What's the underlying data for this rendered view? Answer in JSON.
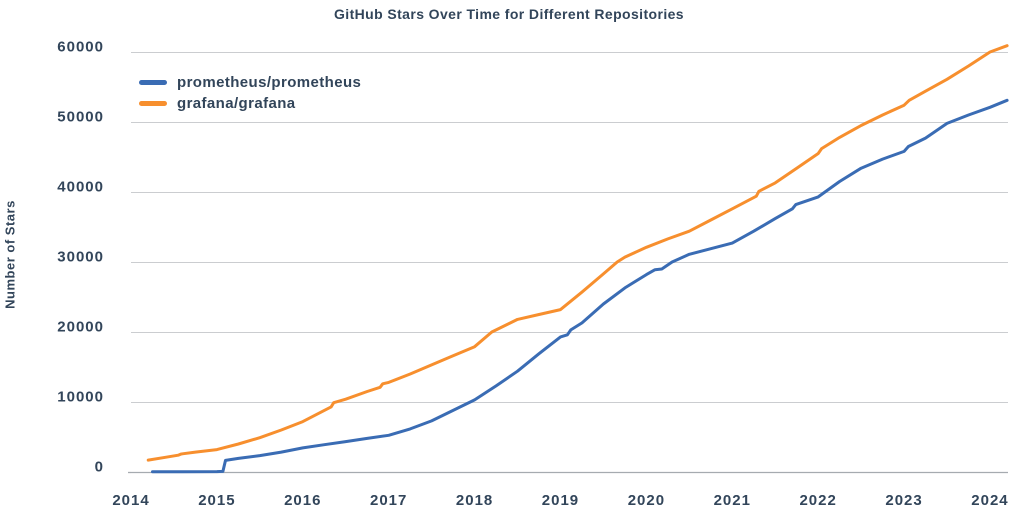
{
  "window": {
    "background_color": "#ffffff"
  },
  "colors": {
    "text": "#32455a",
    "gridline": "#cbcdd0",
    "axis_line": "#a6abb0",
    "prometheus_line": "#3a6cb4",
    "grafana_line": "#f78f2e"
  },
  "chart_data": {
    "type": "line",
    "title": "GitHub Stars Over Time for Different Repositories",
    "xlabel": "",
    "ylabel": "Number of Stars",
    "xlim": [
      2014,
      2024.21
    ],
    "ylim": [
      0,
      60000
    ],
    "grid": "horizontal-only",
    "legend_position": "top-left-inside",
    "x_ticks": [
      {
        "value": 2014,
        "label": "2014"
      },
      {
        "value": 2015,
        "label": "2015"
      },
      {
        "value": 2016,
        "label": "2016"
      },
      {
        "value": 2017,
        "label": "2017"
      },
      {
        "value": 2018,
        "label": "2018"
      },
      {
        "value": 2019,
        "label": "2019"
      },
      {
        "value": 2020,
        "label": "2020"
      },
      {
        "value": 2021,
        "label": "2021"
      },
      {
        "value": 2022,
        "label": "2022"
      },
      {
        "value": 2023,
        "label": "2023"
      },
      {
        "value": 2024,
        "label": "2024"
      }
    ],
    "y_ticks": [
      {
        "value": 0,
        "label": "0"
      },
      {
        "value": 10000,
        "label": "10000"
      },
      {
        "value": 20000,
        "label": "20000"
      },
      {
        "value": 30000,
        "label": "30000"
      },
      {
        "value": 40000,
        "label": "40000"
      },
      {
        "value": 50000,
        "label": "50000"
      },
      {
        "value": 60000,
        "label": "60000"
      }
    ],
    "series": [
      {
        "name": "prometheus/prometheus",
        "color": "#3a6cb4",
        "points": [
          [
            2014.25,
            30
          ],
          [
            2014.6,
            45
          ],
          [
            2015.0,
            60
          ],
          [
            2015.07,
            80
          ],
          [
            2015.1,
            1650
          ],
          [
            2015.25,
            1950
          ],
          [
            2015.5,
            2350
          ],
          [
            2015.75,
            2850
          ],
          [
            2016.0,
            3450
          ],
          [
            2016.25,
            3900
          ],
          [
            2016.5,
            4350
          ],
          [
            2016.75,
            4800
          ],
          [
            2017.0,
            5250
          ],
          [
            2017.25,
            6150
          ],
          [
            2017.5,
            7300
          ],
          [
            2017.75,
            8800
          ],
          [
            2018.0,
            10300
          ],
          [
            2018.25,
            12300
          ],
          [
            2018.5,
            14400
          ],
          [
            2018.75,
            16900
          ],
          [
            2019.0,
            19300
          ],
          [
            2019.08,
            19600
          ],
          [
            2019.12,
            20300
          ],
          [
            2019.25,
            21300
          ],
          [
            2019.5,
            24000
          ],
          [
            2019.75,
            26300
          ],
          [
            2020.0,
            28200
          ],
          [
            2020.1,
            28900
          ],
          [
            2020.18,
            29000
          ],
          [
            2020.3,
            30000
          ],
          [
            2020.5,
            31100
          ],
          [
            2020.75,
            31900
          ],
          [
            2021.0,
            32700
          ],
          [
            2021.25,
            34400
          ],
          [
            2021.5,
            36200
          ],
          [
            2021.7,
            37600
          ],
          [
            2021.74,
            38200
          ],
          [
            2022.0,
            39300
          ],
          [
            2022.25,
            41500
          ],
          [
            2022.5,
            43400
          ],
          [
            2022.75,
            44700
          ],
          [
            2023.0,
            45800
          ],
          [
            2023.05,
            46500
          ],
          [
            2023.25,
            47700
          ],
          [
            2023.5,
            49800
          ],
          [
            2023.75,
            51000
          ],
          [
            2024.0,
            52100
          ],
          [
            2024.2,
            53100
          ]
        ]
      },
      {
        "name": "grafana/grafana",
        "color": "#f78f2e",
        "points": [
          [
            2014.2,
            1700
          ],
          [
            2014.4,
            2100
          ],
          [
            2014.55,
            2400
          ],
          [
            2014.58,
            2550
          ],
          [
            2014.6,
            2600
          ],
          [
            2014.75,
            2850
          ],
          [
            2015.0,
            3200
          ],
          [
            2015.25,
            4000
          ],
          [
            2015.5,
            4900
          ],
          [
            2015.75,
            6000
          ],
          [
            2016.0,
            7200
          ],
          [
            2016.25,
            8800
          ],
          [
            2016.33,
            9300
          ],
          [
            2016.36,
            9900
          ],
          [
            2016.5,
            10400
          ],
          [
            2016.75,
            11500
          ],
          [
            2016.9,
            12100
          ],
          [
            2016.93,
            12600
          ],
          [
            2017.0,
            12800
          ],
          [
            2017.25,
            14000
          ],
          [
            2017.5,
            15300
          ],
          [
            2017.75,
            16600
          ],
          [
            2018.0,
            17900
          ],
          [
            2018.2,
            20000
          ],
          [
            2018.5,
            21800
          ],
          [
            2018.75,
            22500
          ],
          [
            2019.0,
            23200
          ],
          [
            2019.25,
            25700
          ],
          [
            2019.5,
            28300
          ],
          [
            2019.66,
            30000
          ],
          [
            2019.75,
            30700
          ],
          [
            2020.0,
            32100
          ],
          [
            2020.25,
            33300
          ],
          [
            2020.5,
            34400
          ],
          [
            2020.75,
            36000
          ],
          [
            2021.0,
            37600
          ],
          [
            2021.25,
            39200
          ],
          [
            2021.28,
            39400
          ],
          [
            2021.31,
            40100
          ],
          [
            2021.5,
            41300
          ],
          [
            2021.75,
            43400
          ],
          [
            2022.0,
            45500
          ],
          [
            2022.04,
            46200
          ],
          [
            2022.25,
            47800
          ],
          [
            2022.5,
            49500
          ],
          [
            2022.75,
            51000
          ],
          [
            2023.0,
            52400
          ],
          [
            2023.06,
            53100
          ],
          [
            2023.25,
            54400
          ],
          [
            2023.5,
            56100
          ],
          [
            2023.75,
            58000
          ],
          [
            2024.0,
            60000
          ],
          [
            2024.2,
            60900
          ]
        ]
      }
    ]
  }
}
